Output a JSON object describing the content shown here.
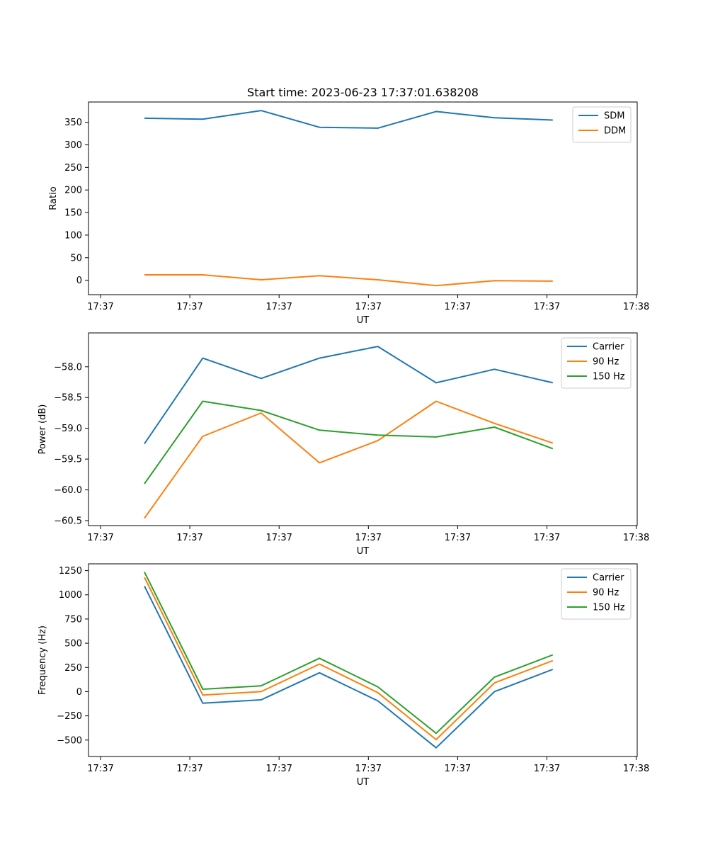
{
  "figure": {
    "title": "Start time: 2023-06-23 17:37:01.638208"
  },
  "chart_data": [
    {
      "type": "line",
      "title": "Start time: 2023-06-23 17:37:01.638208",
      "xlabel": "UT",
      "ylabel": "Ratio",
      "x_tick_labels": [
        "17:37",
        "17:37",
        "17:37",
        "17:37",
        "17:37",
        "17:37",
        "17:38"
      ],
      "y_ticks": [
        0,
        50,
        100,
        150,
        200,
        250,
        300,
        350
      ],
      "ylim": [
        -32,
        395
      ],
      "grid": false,
      "legend_position": "top-right",
      "series": [
        {
          "name": "SDM",
          "color": "#1f77b4",
          "values": [
            359,
            357,
            376,
            339,
            337,
            374,
            360,
            355
          ]
        },
        {
          "name": "DDM",
          "color": "#ff7f0e",
          "values": [
            12,
            12,
            1,
            10,
            1,
            -12,
            -1,
            -2
          ]
        }
      ]
    },
    {
      "type": "line",
      "title": "",
      "xlabel": "UT",
      "ylabel": "Power (dB)",
      "x_tick_labels": [
        "17:37",
        "17:37",
        "17:37",
        "17:37",
        "17:37",
        "17:37",
        "17:38"
      ],
      "y_ticks": [
        -60.5,
        -60.0,
        -59.5,
        -59.0,
        -58.5,
        -58.0
      ],
      "y_tick_labels": [
        "−60.5",
        "−60.0",
        "−59.5",
        "−59.0",
        "−58.5",
        "−58.0"
      ],
      "ylim": [
        -60.58,
        -57.45
      ],
      "grid": false,
      "legend_position": "top-right",
      "series": [
        {
          "name": "Carrier",
          "color": "#1f77b4",
          "values": [
            -59.25,
            -57.86,
            -58.19,
            -57.86,
            -57.67,
            -58.26,
            -58.04,
            -58.26
          ]
        },
        {
          "name": "90 Hz",
          "color": "#ff7f0e",
          "values": [
            -60.46,
            -59.13,
            -58.75,
            -59.56,
            -59.2,
            -58.56,
            -58.92,
            -59.24
          ]
        },
        {
          "name": "150 Hz",
          "color": "#2ca02c",
          "values": [
            -59.9,
            -58.56,
            -58.71,
            -59.03,
            -59.11,
            -59.14,
            -58.98,
            -59.33
          ]
        }
      ]
    },
    {
      "type": "line",
      "title": "",
      "xlabel": "UT",
      "ylabel": "Frequency (Hz)",
      "x_tick_labels": [
        "17:37",
        "17:37",
        "17:37",
        "17:37",
        "17:37",
        "17:37",
        "17:38"
      ],
      "y_ticks": [
        -500,
        -250,
        0,
        250,
        500,
        750,
        1000,
        1250
      ],
      "y_tick_labels": [
        "−500",
        "−250",
        "0",
        "250",
        "500",
        "750",
        "1000",
        "1250"
      ],
      "ylim": [
        -670,
        1320
      ],
      "grid": false,
      "legend_position": "top-right",
      "series": [
        {
          "name": "Carrier",
          "color": "#1f77b4",
          "values": [
            1090,
            -120,
            -85,
            195,
            -95,
            -580,
            0,
            230
          ]
        },
        {
          "name": "90 Hz",
          "color": "#ff7f0e",
          "values": [
            1180,
            -35,
            0,
            285,
            -10,
            -495,
            90,
            320
          ]
        },
        {
          "name": "150 Hz",
          "color": "#2ca02c",
          "values": [
            1235,
            25,
            60,
            345,
            50,
            -430,
            150,
            380
          ]
        }
      ]
    }
  ]
}
